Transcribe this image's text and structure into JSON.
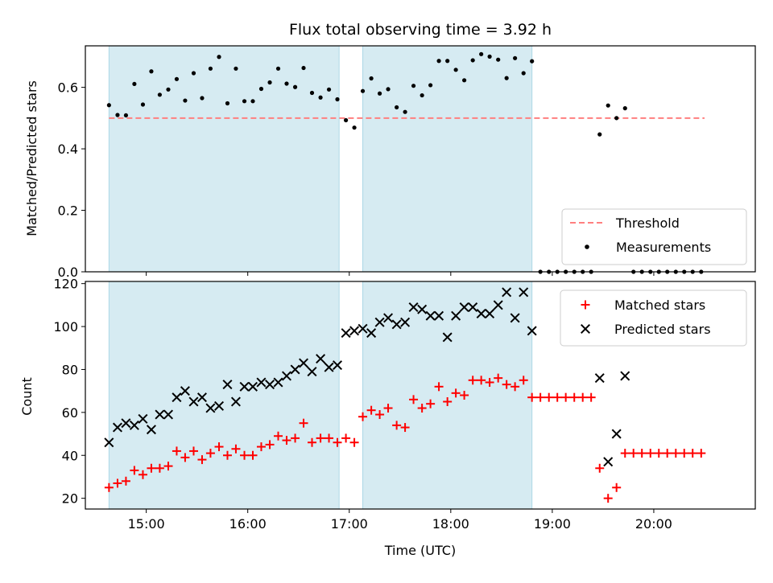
{
  "title": "Flux total observing time = 3.92 h",
  "colors": {
    "shade": "#add8e6",
    "threshold": "#ff7f7f",
    "measurements": "#000000",
    "matched": "#ff0000",
    "predicted": "#000000"
  },
  "chart_data": [
    {
      "type": "scatter",
      "ylabel": "Matched/Predicted stars",
      "xlim": [
        14.4,
        21.0
      ],
      "ylim": [
        0,
        0.735
      ],
      "yticks": [
        "0.0",
        "0.2",
        "0.4",
        "0.6"
      ],
      "shaded_ranges": [
        [
          14.633,
          16.9
        ],
        [
          17.133,
          18.8
        ]
      ],
      "threshold": {
        "name": "Threshold",
        "value": 0.5,
        "x_range": [
          14.633,
          20.5
        ],
        "style": "dashed"
      },
      "legend": {
        "position": "lower right",
        "entries": [
          "Threshold",
          "Measurements"
        ]
      },
      "series": [
        {
          "name": "Measurements",
          "marker": "point",
          "points": [
            [
              14.633,
              0.542
            ],
            [
              14.717,
              0.51
            ],
            [
              14.8,
              0.509
            ],
            [
              14.883,
              0.611
            ],
            [
              14.967,
              0.544
            ],
            [
              15.05,
              0.652
            ],
            [
              15.133,
              0.576
            ],
            [
              15.217,
              0.593
            ],
            [
              15.3,
              0.627
            ],
            [
              15.383,
              0.557
            ],
            [
              15.467,
              0.646
            ],
            [
              15.55,
              0.565
            ],
            [
              15.633,
              0.661
            ],
            [
              15.717,
              0.699
            ],
            [
              15.8,
              0.548
            ],
            [
              15.883,
              0.661
            ],
            [
              15.967,
              0.555
            ],
            [
              16.05,
              0.555
            ],
            [
              16.133,
              0.595
            ],
            [
              16.217,
              0.616
            ],
            [
              16.3,
              0.661
            ],
            [
              16.383,
              0.612
            ],
            [
              16.467,
              0.601
            ],
            [
              16.55,
              0.663
            ],
            [
              16.633,
              0.582
            ],
            [
              16.717,
              0.567
            ],
            [
              16.8,
              0.593
            ],
            [
              16.883,
              0.561
            ],
            [
              16.967,
              0.493
            ],
            [
              17.05,
              0.469
            ],
            [
              17.133,
              0.588
            ],
            [
              17.217,
              0.629
            ],
            [
              17.3,
              0.58
            ],
            [
              17.383,
              0.594
            ],
            [
              17.467,
              0.535
            ],
            [
              17.55,
              0.52
            ],
            [
              17.633,
              0.605
            ],
            [
              17.717,
              0.574
            ],
            [
              17.8,
              0.607
            ],
            [
              17.883,
              0.686
            ],
            [
              17.967,
              0.686
            ],
            [
              18.05,
              0.657
            ],
            [
              18.133,
              0.623
            ],
            [
              18.217,
              0.688
            ],
            [
              18.3,
              0.708
            ],
            [
              18.383,
              0.7
            ],
            [
              18.467,
              0.69
            ],
            [
              18.55,
              0.63
            ],
            [
              18.633,
              0.695
            ],
            [
              18.717,
              0.646
            ],
            [
              18.8,
              0.685
            ],
            [
              18.883,
              0.0
            ],
            [
              18.967,
              0.0
            ],
            [
              19.05,
              0.0
            ],
            [
              19.133,
              0.0
            ],
            [
              19.217,
              0.0
            ],
            [
              19.3,
              0.0
            ],
            [
              19.383,
              0.0
            ],
            [
              19.467,
              0.447
            ],
            [
              19.55,
              0.541
            ],
            [
              19.633,
              0.5
            ],
            [
              19.717,
              0.532
            ],
            [
              19.8,
              0.0
            ],
            [
              19.883,
              0.0
            ],
            [
              19.967,
              0.0
            ],
            [
              20.05,
              0.0
            ],
            [
              20.133,
              0.0
            ],
            [
              20.217,
              0.0
            ],
            [
              20.3,
              0.0
            ],
            [
              20.383,
              0.0
            ],
            [
              20.467,
              0.0
            ]
          ]
        }
      ]
    },
    {
      "type": "scatter",
      "ylabel": "Count",
      "xlabel": "Time (UTC)",
      "xlim": [
        14.4,
        21.0
      ],
      "ylim": [
        15,
        121
      ],
      "yticks": [
        "20",
        "40",
        "60",
        "80",
        "100",
        "120"
      ],
      "xticks": [
        "15:00",
        "16:00",
        "17:00",
        "18:00",
        "19:00",
        "20:00"
      ],
      "shaded_ranges": [
        [
          14.633,
          16.9
        ],
        [
          17.133,
          18.8
        ]
      ],
      "legend": {
        "position": "upper right",
        "entries": [
          "Matched stars",
          "Predicted stars"
        ]
      },
      "series": [
        {
          "name": "Matched stars",
          "marker": "plus",
          "points": [
            [
              14.633,
              25
            ],
            [
              14.717,
              27
            ],
            [
              14.8,
              28
            ],
            [
              14.883,
              33
            ],
            [
              14.967,
              31
            ],
            [
              15.05,
              34
            ],
            [
              15.133,
              34
            ],
            [
              15.217,
              35
            ],
            [
              15.3,
              42
            ],
            [
              15.383,
              39
            ],
            [
              15.467,
              42
            ],
            [
              15.55,
              38
            ],
            [
              15.633,
              41
            ],
            [
              15.717,
              44
            ],
            [
              15.8,
              40
            ],
            [
              15.883,
              43
            ],
            [
              15.967,
              40
            ],
            [
              16.05,
              40
            ],
            [
              16.133,
              44
            ],
            [
              16.217,
              45
            ],
            [
              16.3,
              49
            ],
            [
              16.383,
              47
            ],
            [
              16.467,
              48
            ],
            [
              16.55,
              55
            ],
            [
              16.633,
              46
            ],
            [
              16.717,
              48
            ],
            [
              16.8,
              48
            ],
            [
              16.883,
              46
            ],
            [
              16.967,
              48
            ],
            [
              17.05,
              46
            ],
            [
              17.133,
              58
            ],
            [
              17.217,
              61
            ],
            [
              17.3,
              59
            ],
            [
              17.383,
              62
            ],
            [
              17.467,
              54
            ],
            [
              17.55,
              53
            ],
            [
              17.633,
              66
            ],
            [
              17.717,
              62
            ],
            [
              17.8,
              64
            ],
            [
              17.883,
              72
            ],
            [
              17.967,
              65
            ],
            [
              18.05,
              69
            ],
            [
              18.133,
              68
            ],
            [
              18.217,
              75
            ],
            [
              18.3,
              75
            ],
            [
              18.383,
              74
            ],
            [
              18.467,
              76
            ],
            [
              18.55,
              73
            ],
            [
              18.633,
              72
            ],
            [
              18.717,
              75
            ],
            [
              18.8,
              67
            ],
            [
              18.883,
              67
            ],
            [
              18.967,
              67
            ],
            [
              19.05,
              67
            ],
            [
              19.133,
              67
            ],
            [
              19.217,
              67
            ],
            [
              19.3,
              67
            ],
            [
              19.383,
              67
            ],
            [
              19.467,
              34
            ],
            [
              19.55,
              20
            ],
            [
              19.633,
              25
            ],
            [
              19.717,
              41
            ],
            [
              19.8,
              41
            ],
            [
              19.883,
              41
            ],
            [
              19.967,
              41
            ],
            [
              20.05,
              41
            ],
            [
              20.133,
              41
            ],
            [
              20.217,
              41
            ],
            [
              20.3,
              41
            ],
            [
              20.383,
              41
            ],
            [
              20.467,
              41
            ]
          ]
        },
        {
          "name": "Predicted stars",
          "marker": "x",
          "points": [
            [
              14.633,
              46
            ],
            [
              14.717,
              53
            ],
            [
              14.8,
              55
            ],
            [
              14.883,
              54
            ],
            [
              14.967,
              57
            ],
            [
              15.05,
              52
            ],
            [
              15.133,
              59
            ],
            [
              15.217,
              59
            ],
            [
              15.3,
              67
            ],
            [
              15.383,
              70
            ],
            [
              15.467,
              65
            ],
            [
              15.55,
              67
            ],
            [
              15.633,
              62
            ],
            [
              15.717,
              63
            ],
            [
              15.8,
              73
            ],
            [
              15.883,
              65
            ],
            [
              15.967,
              72
            ],
            [
              16.05,
              72
            ],
            [
              16.133,
              74
            ],
            [
              16.217,
              73
            ],
            [
              16.3,
              74
            ],
            [
              16.383,
              77
            ],
            [
              16.467,
              80
            ],
            [
              16.55,
              83
            ],
            [
              16.633,
              79
            ],
            [
              16.717,
              85
            ],
            [
              16.8,
              81
            ],
            [
              16.883,
              82
            ],
            [
              16.967,
              97
            ],
            [
              17.05,
              98
            ],
            [
              17.133,
              99
            ],
            [
              17.217,
              97
            ],
            [
              17.3,
              102
            ],
            [
              17.383,
              104
            ],
            [
              17.467,
              101
            ],
            [
              17.55,
              102
            ],
            [
              17.633,
              109
            ],
            [
              17.717,
              108
            ],
            [
              17.8,
              105
            ],
            [
              17.883,
              105
            ],
            [
              17.967,
              95
            ],
            [
              18.05,
              105
            ],
            [
              18.133,
              109
            ],
            [
              18.217,
              109
            ],
            [
              18.3,
              106
            ],
            [
              18.383,
              106
            ],
            [
              18.467,
              110
            ],
            [
              18.55,
              116
            ],
            [
              18.633,
              104
            ],
            [
              18.717,
              116
            ],
            [
              18.8,
              98
            ],
            [
              19.467,
              76
            ],
            [
              19.55,
              37
            ],
            [
              19.633,
              50
            ],
            [
              19.717,
              77
            ]
          ]
        }
      ]
    }
  ]
}
